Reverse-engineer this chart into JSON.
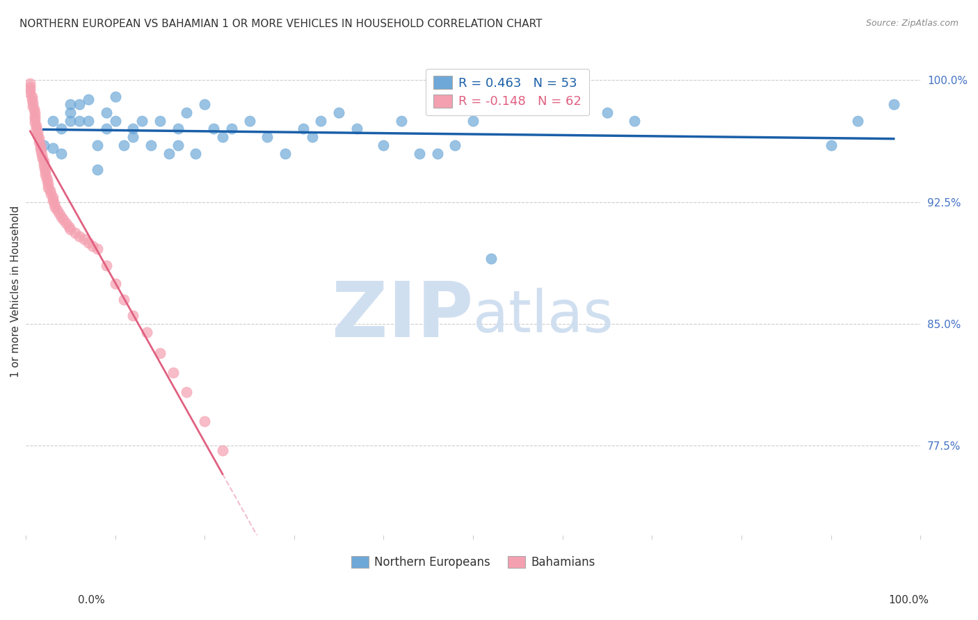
{
  "title": "NORTHERN EUROPEAN VS BAHAMIAN 1 OR MORE VEHICLES IN HOUSEHOLD CORRELATION CHART",
  "source": "Source: ZipAtlas.com",
  "ylabel": "1 or more Vehicles in Household",
  "xlim": [
    0.0,
    1.0
  ],
  "ylim": [
    0.72,
    1.02
  ],
  "yticks": [
    0.775,
    0.85,
    0.925,
    1.0
  ],
  "ytick_labels": [
    "77.5%",
    "85.0%",
    "92.5%",
    "100.0%"
  ],
  "legend_r_blue": "0.463",
  "legend_n_blue": "53",
  "legend_r_pink": "-0.148",
  "legend_n_pink": "62",
  "blue_color": "#6ea8d8",
  "pink_color": "#f4a0b0",
  "blue_line_color": "#1a5fa8",
  "pink_line_color": "#e06080",
  "blue_scatter": {
    "x": [
      0.02,
      0.03,
      0.03,
      0.04,
      0.04,
      0.05,
      0.05,
      0.05,
      0.06,
      0.06,
      0.07,
      0.07,
      0.08,
      0.08,
      0.09,
      0.09,
      0.1,
      0.1,
      0.11,
      0.12,
      0.12,
      0.13,
      0.14,
      0.15,
      0.16,
      0.17,
      0.17,
      0.18,
      0.19,
      0.2,
      0.21,
      0.22,
      0.23,
      0.25,
      0.27,
      0.29,
      0.31,
      0.32,
      0.33,
      0.35,
      0.37,
      0.4,
      0.42,
      0.44,
      0.46,
      0.48,
      0.5,
      0.52,
      0.65,
      0.68,
      0.9,
      0.93,
      0.97
    ],
    "y": [
      0.96,
      0.975,
      0.958,
      0.97,
      0.955,
      0.975,
      0.98,
      0.985,
      0.975,
      0.985,
      0.975,
      0.988,
      0.945,
      0.96,
      0.97,
      0.98,
      0.975,
      0.99,
      0.96,
      0.97,
      0.965,
      0.975,
      0.96,
      0.975,
      0.955,
      0.96,
      0.97,
      0.98,
      0.955,
      0.985,
      0.97,
      0.965,
      0.97,
      0.975,
      0.965,
      0.955,
      0.97,
      0.965,
      0.975,
      0.98,
      0.97,
      0.96,
      0.975,
      0.955,
      0.955,
      0.96,
      0.975,
      0.89,
      0.98,
      0.975,
      0.96,
      0.975,
      0.985
    ]
  },
  "pink_scatter": {
    "x": [
      0.005,
      0.005,
      0.005,
      0.005,
      0.007,
      0.007,
      0.008,
      0.008,
      0.009,
      0.01,
      0.01,
      0.01,
      0.01,
      0.012,
      0.012,
      0.013,
      0.013,
      0.015,
      0.015,
      0.016,
      0.016,
      0.017,
      0.018,
      0.019,
      0.02,
      0.02,
      0.021,
      0.022,
      0.022,
      0.023,
      0.024,
      0.025,
      0.025,
      0.027,
      0.028,
      0.03,
      0.03,
      0.032,
      0.033,
      0.035,
      0.037,
      0.04,
      0.042,
      0.045,
      0.048,
      0.05,
      0.055,
      0.06,
      0.065,
      0.07,
      0.075,
      0.08,
      0.09,
      0.1,
      0.11,
      0.12,
      0.135,
      0.15,
      0.165,
      0.18,
      0.2,
      0.22
    ],
    "y": [
      0.998,
      0.996,
      0.994,
      0.992,
      0.99,
      0.988,
      0.986,
      0.984,
      0.982,
      0.98,
      0.978,
      0.976,
      0.974,
      0.972,
      0.97,
      0.968,
      0.966,
      0.964,
      0.962,
      0.96,
      0.958,
      0.956,
      0.954,
      0.952,
      0.95,
      0.948,
      0.946,
      0.944,
      0.942,
      0.94,
      0.938,
      0.936,
      0.934,
      0.932,
      0.93,
      0.928,
      0.926,
      0.924,
      0.922,
      0.92,
      0.918,
      0.916,
      0.914,
      0.912,
      0.91,
      0.908,
      0.906,
      0.904,
      0.902,
      0.9,
      0.898,
      0.896,
      0.886,
      0.875,
      0.865,
      0.855,
      0.845,
      0.832,
      0.82,
      0.808,
      0.79,
      0.772
    ]
  },
  "watermark_zip": "ZIP",
  "watermark_atlas": "atlas",
  "watermark_color": "#d0dff0",
  "background_color": "#ffffff",
  "title_color": "#333333",
  "axis_label_color": "#333333",
  "right_tick_color": "#4472c4",
  "grid_color": "#cccccc"
}
